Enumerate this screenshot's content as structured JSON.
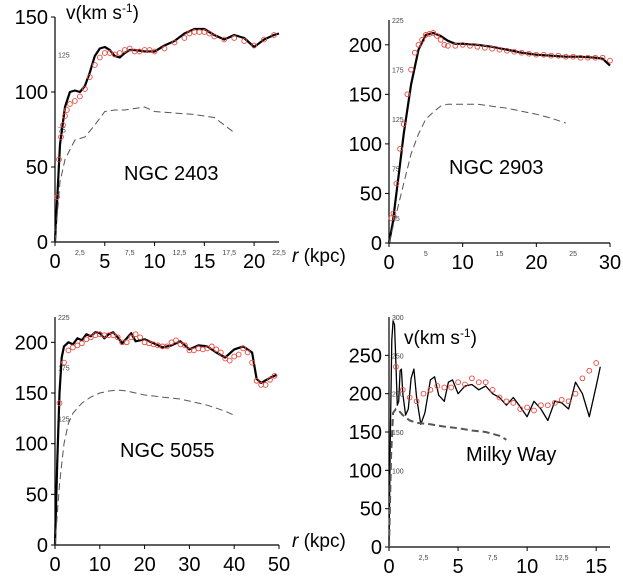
{
  "chart_data": [
    {
      "type": "scatter",
      "title": "NGC 2403",
      "ylabel": "v(km s-1)",
      "xlabel": "",
      "xlim": [
        0,
        22.5
      ],
      "ylim": [
        0,
        150
      ],
      "major_xticks": [
        "0",
        "5",
        "10",
        "15",
        "20"
      ],
      "major_xtick_values": [
        0,
        5,
        10,
        15,
        20
      ],
      "minor_xticks": [
        "2,5",
        "7,5",
        "12,5",
        "17,5",
        "22,5"
      ],
      "minor_xtick_values": [
        2.5,
        7.5,
        12.5,
        17.5,
        22.5
      ],
      "major_yticks": [
        "0",
        "50",
        "100",
        "150"
      ],
      "major_ytick_values": [
        0,
        50,
        100,
        150
      ],
      "minor_yticks": [
        "75",
        "125"
      ],
      "minor_ytick_values": [
        75,
        125
      ],
      "series": [
        {
          "role": "model",
          "style": "solid",
          "x": [
            0,
            0.5,
            1,
            1.5,
            2,
            2.5,
            3,
            3.5,
            4,
            4.5,
            5,
            5.5,
            6,
            6.5,
            7,
            7.5,
            8,
            9,
            10,
            11,
            12,
            13,
            14,
            15,
            16,
            17,
            18,
            19,
            20,
            21,
            22,
            22.5
          ],
          "y": [
            0,
            65,
            90,
            100,
            101,
            100,
            104,
            113,
            124,
            129,
            130,
            128,
            124,
            123,
            126,
            128,
            128,
            127,
            127,
            131,
            134,
            139,
            142,
            142,
            138,
            135,
            138,
            136,
            130,
            135,
            138,
            139
          ]
        },
        {
          "role": "observed",
          "style": "circles",
          "x": [
            0.2,
            0.4,
            0.6,
            0.8,
            1,
            1.2,
            1.5,
            2,
            2.5,
            3,
            3.5,
            4,
            4.5,
            5,
            5.5,
            6,
            6.5,
            7,
            7.5,
            8,
            8.5,
            9,
            9.5,
            10,
            11,
            12,
            13,
            13.5,
            14,
            14.5,
            15,
            15.5,
            16,
            17,
            18,
            19,
            20,
            21,
            22
          ],
          "y": [
            30,
            55,
            70,
            78,
            84,
            88,
            92,
            94,
            97,
            102,
            110,
            118,
            123,
            126,
            126,
            125,
            126,
            128,
            129,
            127,
            127,
            128,
            128,
            127,
            129,
            133,
            136,
            139,
            140,
            140,
            140,
            139,
            137,
            135,
            136,
            134,
            131,
            135,
            138
          ]
        },
        {
          "role": "baryonic",
          "style": "dashed",
          "x": [
            0,
            0.5,
            1,
            2,
            3,
            4,
            5,
            6,
            7,
            8,
            9,
            10,
            12,
            14,
            16,
            17,
            18
          ],
          "y": [
            0,
            40,
            55,
            68,
            70,
            78,
            87,
            88,
            88,
            89,
            90,
            87,
            86,
            85,
            83,
            78,
            73
          ]
        }
      ]
    },
    {
      "type": "scatter",
      "title": "NGC 2903",
      "ylabel": "",
      "xlabel": "r (kpc)",
      "xlim": [
        0,
        30
      ],
      "ylim": [
        0,
        225
      ],
      "major_xticks": [
        "0",
        "10",
        "20",
        "30"
      ],
      "major_xtick_values": [
        0,
        10,
        20,
        30
      ],
      "minor_xticks": [
        "5",
        "15",
        "25"
      ],
      "minor_xtick_values": [
        5,
        15,
        25
      ],
      "major_yticks": [
        "0",
        "50",
        "100",
        "150",
        "200"
      ],
      "major_ytick_values": [
        0,
        50,
        100,
        150,
        200
      ],
      "minor_yticks": [
        "25",
        "75",
        "125",
        "175",
        "225"
      ],
      "minor_ytick_values": [
        25,
        75,
        125,
        175,
        225
      ],
      "series": [
        {
          "role": "model",
          "style": "solid",
          "x": [
            0,
            0.5,
            1,
            1.5,
            2,
            3,
            4,
            5,
            6,
            7,
            8,
            9,
            10,
            12,
            14,
            16,
            18,
            20,
            22,
            24,
            26,
            28,
            29,
            30
          ],
          "y": [
            0,
            20,
            50,
            80,
            110,
            160,
            195,
            210,
            212,
            209,
            204,
            201,
            201,
            200,
            198,
            195,
            192,
            190,
            189,
            188,
            188,
            187,
            186,
            179
          ]
        },
        {
          "role": "observed",
          "style": "circles",
          "x": [
            0.3,
            0.6,
            1,
            1.5,
            2,
            2.5,
            3,
            3.5,
            4,
            4.5,
            5,
            5.5,
            6,
            6.5,
            7,
            7.5,
            8,
            9,
            10,
            11,
            12,
            13,
            14,
            15,
            16,
            17,
            18,
            19,
            20,
            21,
            22,
            23,
            24,
            25,
            26,
            27,
            28,
            29,
            30
          ],
          "y": [
            25,
            30,
            60,
            95,
            120,
            150,
            175,
            192,
            200,
            205,
            210,
            211,
            212,
            209,
            205,
            200,
            199,
            199,
            200,
            199,
            198,
            197,
            196,
            195,
            194,
            193,
            192,
            191,
            190,
            190,
            189,
            189,
            188,
            188,
            187,
            187,
            187,
            187,
            184
          ]
        },
        {
          "role": "baryonic",
          "style": "dashed",
          "x": [
            0,
            1,
            2,
            3,
            4,
            5,
            6,
            7,
            8,
            10,
            12,
            14,
            16,
            18,
            20,
            22,
            24
          ],
          "y": [
            0,
            30,
            60,
            90,
            110,
            125,
            132,
            138,
            140,
            140,
            140,
            138,
            136,
            133,
            130,
            126,
            121
          ]
        }
      ]
    },
    {
      "type": "scatter",
      "title": "NGC 5055",
      "ylabel": "",
      "xlabel": "",
      "xlim": [
        0,
        50
      ],
      "ylim": [
        0,
        225
      ],
      "major_xticks": [
        "0",
        "10",
        "20",
        "30",
        "40",
        "50"
      ],
      "major_xtick_values": [
        0,
        10,
        20,
        30,
        40,
        50
      ],
      "minor_xticks": [],
      "minor_xtick_values": [],
      "major_yticks": [
        "0",
        "50",
        "100",
        "150",
        "200"
      ],
      "major_ytick_values": [
        0,
        50,
        100,
        150,
        200
      ],
      "minor_yticks": [
        "125",
        "175",
        "225"
      ],
      "minor_ytick_values": [
        125,
        175,
        225
      ],
      "series": [
        {
          "role": "model",
          "style": "solid",
          "x": [
            0,
            0.5,
            1,
            1.5,
            2,
            3,
            4,
            5,
            6,
            7,
            8,
            9,
            10,
            11,
            12,
            13,
            14,
            15,
            16,
            17,
            18,
            20,
            22,
            24,
            26,
            28,
            30,
            32,
            34,
            36,
            38,
            40,
            42,
            44,
            45,
            46,
            48,
            49.5
          ],
          "y": [
            0,
            80,
            150,
            185,
            196,
            200,
            198,
            204,
            202,
            208,
            206,
            210,
            209,
            204,
            208,
            210,
            205,
            199,
            204,
            209,
            201,
            203,
            199,
            195,
            197,
            201,
            193,
            197,
            196,
            190,
            185,
            193,
            196,
            190,
            164,
            160,
            165,
            168
          ]
        },
        {
          "role": "observed",
          "style": "circles",
          "x": [
            1,
            2,
            3,
            4,
            5,
            6,
            7,
            8,
            9,
            10,
            11,
            12,
            13,
            14,
            15,
            16,
            17,
            18,
            19,
            20,
            21,
            22,
            23,
            24,
            25,
            26,
            27,
            28,
            29,
            30,
            31,
            32,
            33,
            34,
            35,
            36,
            37,
            38,
            39,
            40,
            41,
            42,
            43,
            44,
            45,
            46,
            47,
            48,
            49
          ],
          "y": [
            140,
            180,
            192,
            195,
            197,
            199,
            203,
            205,
            207,
            208,
            207,
            207,
            207,
            205,
            200,
            200,
            205,
            208,
            205,
            200,
            199,
            198,
            197,
            196,
            196,
            200,
            202,
            198,
            197,
            192,
            192,
            194,
            193,
            194,
            196,
            193,
            190,
            184,
            182,
            186,
            188,
            194,
            190,
            180,
            162,
            158,
            158,
            163,
            167
          ]
        },
        {
          "role": "baryonic",
          "style": "dashed",
          "x": [
            0,
            1,
            2,
            3,
            4,
            6,
            8,
            10,
            12,
            14,
            16,
            18,
            20,
            22,
            24,
            26,
            28,
            30,
            32,
            34,
            36,
            38,
            40
          ],
          "y": [
            0,
            60,
            100,
            120,
            130,
            140,
            146,
            150,
            152,
            153,
            152,
            150,
            148,
            147,
            146,
            145,
            144,
            142,
            140,
            138,
            135,
            132,
            128
          ]
        }
      ]
    },
    {
      "type": "scatter",
      "title": "Milky Way",
      "ylabel": "v(km s-1)",
      "xlabel": "r (kpc)",
      "xlim": [
        0,
        16
      ],
      "ylim": [
        0,
        300
      ],
      "major_xticks": [
        "0",
        "5",
        "10",
        "15"
      ],
      "major_xtick_values": [
        0,
        5,
        10,
        15
      ],
      "minor_xticks": [
        "2,5",
        "7,5",
        "12,5"
      ],
      "minor_xtick_values": [
        2.5,
        7.5,
        12.5
      ],
      "major_yticks": [
        "0",
        "50",
        "100",
        "150",
        "200",
        "250"
      ],
      "major_ytick_values": [
        0,
        50,
        100,
        150,
        200,
        250
      ],
      "minor_yticks": [
        "100",
        "150",
        "200",
        "250",
        "300"
      ],
      "minor_ytick_values": [
        100,
        150,
        200,
        250,
        300
      ],
      "series": [
        {
          "role": "model",
          "style": "solid",
          "x": [
            0,
            0.1,
            0.2,
            0.3,
            0.4,
            0.5,
            0.6,
            0.7,
            0.8,
            0.9,
            1,
            1.2,
            1.4,
            1.6,
            1.8,
            2,
            2.3,
            2.6,
            3,
            3.3,
            3.6,
            4,
            4.3,
            4.6,
            5,
            5.5,
            6,
            6.5,
            7,
            7.5,
            8,
            8.5,
            9,
            9.5,
            10,
            10.5,
            11,
            11.5,
            12,
            12.5,
            13,
            13.5,
            14,
            14.5,
            15,
            15.3
          ],
          "y": [
            0,
            150,
            270,
            295,
            290,
            240,
            185,
            190,
            230,
            232,
            200,
            172,
            180,
            220,
            232,
            195,
            160,
            175,
            218,
            222,
            198,
            190,
            215,
            218,
            200,
            210,
            212,
            205,
            210,
            200,
            195,
            185,
            195,
            183,
            170,
            190,
            180,
            165,
            190,
            188,
            180,
            215,
            200,
            170,
            210,
            235
          ]
        },
        {
          "role": "observed",
          "style": "circles",
          "x": [
            0.5,
            1,
            1.5,
            2,
            2.5,
            3,
            3.5,
            4,
            4.5,
            5,
            5.5,
            6,
            6.5,
            7,
            7.5,
            8,
            8.5,
            9,
            9.5,
            10,
            10.5,
            11,
            11.5,
            12,
            12.5,
            13,
            13.5,
            14,
            14.5,
            15
          ],
          "y": [
            235,
            205,
            195,
            190,
            200,
            205,
            210,
            208,
            208,
            215,
            212,
            220,
            215,
            215,
            205,
            195,
            190,
            188,
            180,
            182,
            178,
            185,
            185,
            188,
            192,
            190,
            200,
            220,
            230,
            240
          ]
        },
        {
          "role": "baryonic",
          "style": "dashed",
          "x": [
            0,
            0.15,
            0.3,
            0.5,
            0.7,
            1,
            1.5,
            2,
            3,
            4,
            5,
            6,
            7,
            8,
            8.5
          ],
          "y": [
            0,
            120,
            175,
            180,
            178,
            172,
            165,
            162,
            160,
            157,
            155,
            152,
            150,
            145,
            140
          ]
        }
      ]
    }
  ]
}
